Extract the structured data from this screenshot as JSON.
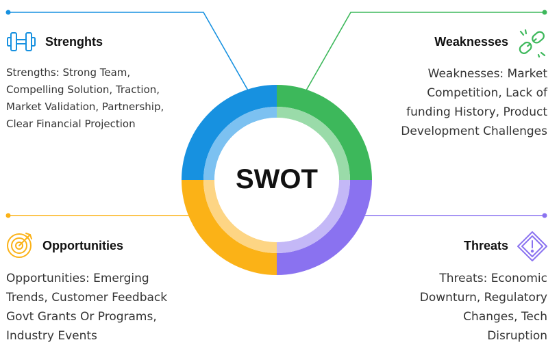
{
  "center": {
    "label": "SWOT"
  },
  "quadrants": [
    {
      "key": "strengths",
      "title": "Strenghts",
      "body": "Strengths: Strong Team,\nCompelling Solution, Traction,\nMarket Validation, Partnership,\nClear Financial Projection",
      "color": "#1791e0",
      "inner_color": "#7cc1f1",
      "icon": "dumbbell-icon"
    },
    {
      "key": "weaknesses",
      "title": "Weaknesses",
      "body": "Weaknesses: Market\nCompetition, Lack of\nfunding History, Product\nDevelopment Challenges",
      "color": "#3db85b",
      "inner_color": "#9adba9",
      "icon": "broken-chain-icon"
    },
    {
      "key": "opportunities",
      "title": "Opportunities",
      "body": "Opportunities: Emerging\nTrends, Customer Feedback\nGovt Grants Or Programs,\nIndustry Events",
      "color": "#fbb217",
      "inner_color": "#fdd584",
      "icon": "target-icon"
    },
    {
      "key": "threats",
      "title": "Threats",
      "body": "Threats: Economic\nDownturn, Regulatory\nChanges, Tech\nDisruption",
      "color": "#8a72f0",
      "inner_color": "#c4b8f7",
      "icon": "warning-diamond-icon"
    }
  ]
}
